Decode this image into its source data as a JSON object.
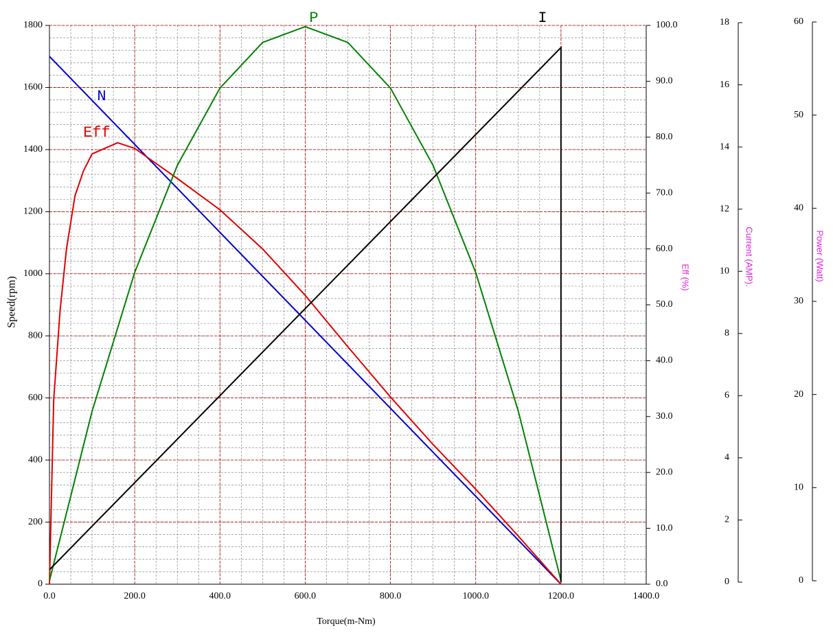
{
  "chart_data": {
    "type": "line",
    "x_label": "Torque(m-Nm)",
    "y_label": "Speed(rpm)",
    "y2_label": "Eff (%)",
    "y3_label": "Current (AMP).",
    "y4_label": "Power (Watt)",
    "xlim": [
      0,
      1400
    ],
    "xticks": [
      {
        "value": 0,
        "label": "0.0"
      },
      {
        "value": 200,
        "label": "200.0"
      },
      {
        "value": 400,
        "label": "400.0"
      },
      {
        "value": 600,
        "label": "600.0"
      },
      {
        "value": 800,
        "label": "800.0"
      },
      {
        "value": 1000,
        "label": "1000.0"
      },
      {
        "value": 1200,
        "label": "1200.0"
      },
      {
        "value": 1400,
        "label": "1400.0"
      }
    ],
    "ylim": [
      0,
      1800
    ],
    "yticks": [
      0,
      200,
      400,
      600,
      800,
      1000,
      1200,
      1400,
      1600,
      1800
    ],
    "y2lim": [
      0,
      100
    ],
    "y2ticks": [
      {
        "value": 0,
        "label": "0.0"
      },
      {
        "value": 10,
        "label": "10.0"
      },
      {
        "value": 20,
        "label": "20.0"
      },
      {
        "value": 30,
        "label": "30.0"
      },
      {
        "value": 40,
        "label": "40.0"
      },
      {
        "value": 50,
        "label": "50.0"
      },
      {
        "value": 60,
        "label": "60.0"
      },
      {
        "value": 70,
        "label": "70.0"
      },
      {
        "value": 80,
        "label": "80.0"
      },
      {
        "value": 90,
        "label": "90.0"
      },
      {
        "value": 100,
        "label": "100.0"
      }
    ],
    "y3lim": [
      0,
      18
    ],
    "y3ticks": [
      0,
      2,
      4,
      6,
      8,
      10,
      12,
      14,
      16,
      18
    ],
    "y4lim": [
      0,
      60
    ],
    "y4ticks": [
      0,
      10,
      20,
      30,
      40,
      50,
      60
    ],
    "grid": true,
    "minor_grid": {
      "x_step": 50,
      "y_step": 40
    },
    "series": [
      {
        "name": "N",
        "color": "#0000cc",
        "axis": "y",
        "x": [
          0,
          1200
        ],
        "values": [
          1700,
          0
        ]
      },
      {
        "name": "Eff",
        "color": "#e00000",
        "axis": "y2",
        "x": [
          0,
          10,
          25,
          40,
          60,
          80,
          100,
          160,
          200,
          300,
          400,
          500,
          600,
          700,
          800,
          900,
          1000,
          1100,
          1200
        ],
        "values": [
          0,
          33,
          49,
          60,
          69.5,
          74,
          77,
          79,
          78,
          72.6,
          67,
          60,
          51.7,
          42.5,
          33.5,
          25,
          17,
          8.6,
          0
        ]
      },
      {
        "name": "P",
        "color": "#008000",
        "axis": "y4",
        "x": [
          0,
          100,
          200,
          300,
          400,
          500,
          600,
          700,
          800,
          900,
          1000,
          1100,
          1200
        ],
        "values": [
          0,
          18.2,
          33.1,
          44.6,
          52.9,
          57.8,
          59.5,
          57.8,
          52.9,
          44.6,
          33.1,
          18.2,
          0
        ]
      },
      {
        "name": "I",
        "color": "#000000",
        "axis": "y3",
        "x": [
          0,
          1200,
          1200
        ],
        "values": [
          0.4,
          17.2,
          0
        ]
      }
    ]
  }
}
